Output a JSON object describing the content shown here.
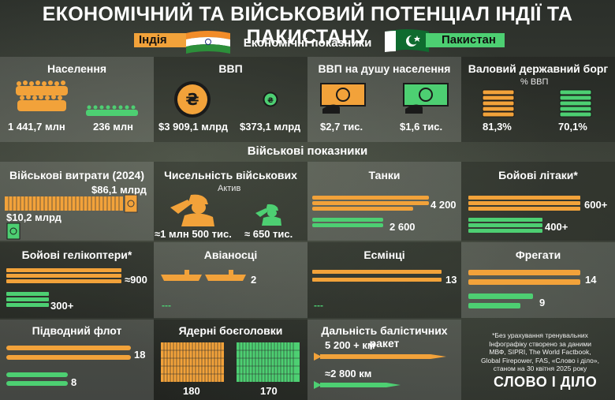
{
  "title": "ЕКОНОМІЧНИЙ ТА ВІЙСЬКОВИЙ ПОТЕНЦІАЛ ІНДІЇ ТА ПАКИСТАНУ",
  "countries": {
    "india": "Індія",
    "pakistan": "Пакистан"
  },
  "colors": {
    "india": "#f2a23a",
    "pakistan": "#4dcf72"
  },
  "economic": {
    "section": "Економічні показники",
    "population": {
      "label": "Населення",
      "india": "1 441,7 млн",
      "pakistan": "236 млн"
    },
    "gdp": {
      "label": "ВВП",
      "india": "$3 909,1 млрд",
      "pakistan": "$373,1 млрд"
    },
    "gdp_per_capita": {
      "label": "ВВП на душу населення",
      "india": "$2,7 тис.",
      "pakistan": "$1,6 тис."
    },
    "debt": {
      "label": "Валовий державний борг",
      "unit": "% ВВП",
      "india": "81,3%",
      "pakistan": "70,1%"
    }
  },
  "military": {
    "section": "Військові показники",
    "spending": {
      "label": "Військові витрати (2024)",
      "india": "$86,1 млрд",
      "pakistan": "$10,2 млрд"
    },
    "personnel": {
      "label": "Чисельність військових",
      "sub": "Актив",
      "india": "≈1 млн 500 тис.",
      "pakistan": "≈ 650 тис."
    },
    "tanks": {
      "label": "Танки",
      "india": "4 200",
      "pakistan": "2 600"
    },
    "fighters": {
      "label": "Бойові літаки*",
      "india": "600+",
      "pakistan": "400+"
    },
    "helicopters": {
      "label": "Бойові гелікоптери*",
      "india": "≈900",
      "pakistan": "300+"
    },
    "carriers": {
      "label": "Авіаносці",
      "india": "2",
      "pakistan": "---"
    },
    "destroyers": {
      "label": "Есмінці",
      "india": "13",
      "pakistan": "---"
    },
    "frigates": {
      "label": "Фрегати",
      "india": "14",
      "pakistan": "9"
    },
    "submarines": {
      "label": "Підводний флот",
      "india": "18",
      "pakistan": "8"
    },
    "nukes": {
      "label": "Ядерні боєголовки",
      "india": "180",
      "pakistan": "170"
    },
    "missiles": {
      "label": "Дальність балістичних ракет",
      "india": "5 200 + км",
      "pakistan": "≈2 800 км"
    }
  },
  "footnote": {
    "line1": "*Без урахування тренувальних",
    "line2": "Інфографіку створено за даними",
    "line3": "МВФ, SIPRI, The World Factbook,",
    "line4": "Global Firepower, FAS, «Слово і діло»,",
    "line5": "станом на 30 квітня 2025 року"
  },
  "logo": "СЛОВО І ДІЛО"
}
